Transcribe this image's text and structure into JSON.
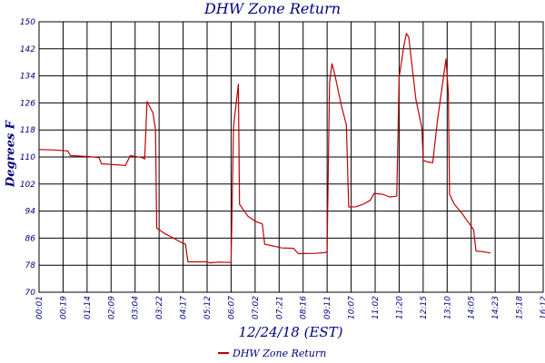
{
  "chart_data": {
    "type": "line",
    "title": "DHW Zone Return",
    "xlabel": "12/24/18 (EST)",
    "ylabel": "Degrees F",
    "ylim": [
      70,
      150
    ],
    "yticks": [
      70,
      78,
      86,
      94,
      102,
      110,
      118,
      126,
      134,
      142,
      150
    ],
    "xticks": [
      "00:01",
      "00:19",
      "01:14",
      "02:09",
      "03:04",
      "03:22",
      "04:17",
      "05:12",
      "06:07",
      "07:02",
      "07:21",
      "08:16",
      "09:11",
      "10:07",
      "11:02",
      "11:20",
      "12:15",
      "13:10",
      "14:05",
      "14:23",
      "15:18",
      "16:12"
    ],
    "grid": true,
    "legend_position": "bottom-center",
    "colors": {
      "line": "#c00000",
      "axis": "#000080",
      "grid": "#000000"
    },
    "series": [
      {
        "name": "DHW Zone Return",
        "points": [
          [
            0,
            112.2
          ],
          [
            0.6,
            112.1
          ],
          [
            1.2,
            111.8
          ],
          [
            1.3,
            110.4
          ],
          [
            1.6,
            110.3
          ],
          [
            2.1,
            110.1
          ],
          [
            2.5,
            109.8
          ],
          [
            2.6,
            108.0
          ],
          [
            3.0,
            107.8
          ],
          [
            3.6,
            107.5
          ],
          [
            3.8,
            110.4
          ],
          [
            4.3,
            109.8
          ],
          [
            4.4,
            109.4
          ],
          [
            4.5,
            126.4
          ],
          [
            4.75,
            123.0
          ],
          [
            4.85,
            118.0
          ],
          [
            4.9,
            89.0
          ],
          [
            5.2,
            87.5
          ],
          [
            5.6,
            86.0
          ],
          [
            5.9,
            84.8
          ],
          [
            6.1,
            84.2
          ],
          [
            6.2,
            79.0
          ],
          [
            7.0,
            79.0
          ],
          [
            7.1,
            78.7
          ],
          [
            7.5,
            78.9
          ],
          [
            8.0,
            78.8
          ],
          [
            8.1,
            119.0
          ],
          [
            8.3,
            131.5
          ],
          [
            8.35,
            96.0
          ],
          [
            8.5,
            94.5
          ],
          [
            8.7,
            92.5
          ],
          [
            9.0,
            91.0
          ],
          [
            9.3,
            90.2
          ],
          [
            9.4,
            84.2
          ],
          [
            9.8,
            83.6
          ],
          [
            10.1,
            83.1
          ],
          [
            10.6,
            83.0
          ],
          [
            10.8,
            81.4
          ],
          [
            11.5,
            81.5
          ],
          [
            11.9,
            81.7
          ],
          [
            12.0,
            82.0
          ],
          [
            12.1,
            131.8
          ],
          [
            12.2,
            137.6
          ],
          [
            12.3,
            135.0
          ],
          [
            12.6,
            125.0
          ],
          [
            12.8,
            119.5
          ],
          [
            12.9,
            95.2
          ],
          [
            13.2,
            95.3
          ],
          [
            13.5,
            96.0
          ],
          [
            13.8,
            97.2
          ],
          [
            13.95,
            99.2
          ],
          [
            14.3,
            99.0
          ],
          [
            14.6,
            98.2
          ],
          [
            14.9,
            98.4
          ],
          [
            15.0,
            133.5
          ],
          [
            15.2,
            143.0
          ],
          [
            15.3,
            146.5
          ],
          [
            15.4,
            145.5
          ],
          [
            15.6,
            133.0
          ],
          [
            15.7,
            127.0
          ],
          [
            15.95,
            118.5
          ],
          [
            16.0,
            109.0
          ],
          [
            16.2,
            108.5
          ],
          [
            16.4,
            108.3
          ],
          [
            16.6,
            121.0
          ],
          [
            16.95,
            139.0
          ],
          [
            17.05,
            129.0
          ],
          [
            17.1,
            99.0
          ],
          [
            17.3,
            96.0
          ],
          [
            17.6,
            93.5
          ],
          [
            17.85,
            91.0
          ],
          [
            18.1,
            88.5
          ],
          [
            18.2,
            82.2
          ],
          [
            18.5,
            82.0
          ],
          [
            18.8,
            81.6
          ]
        ]
      }
    ]
  }
}
